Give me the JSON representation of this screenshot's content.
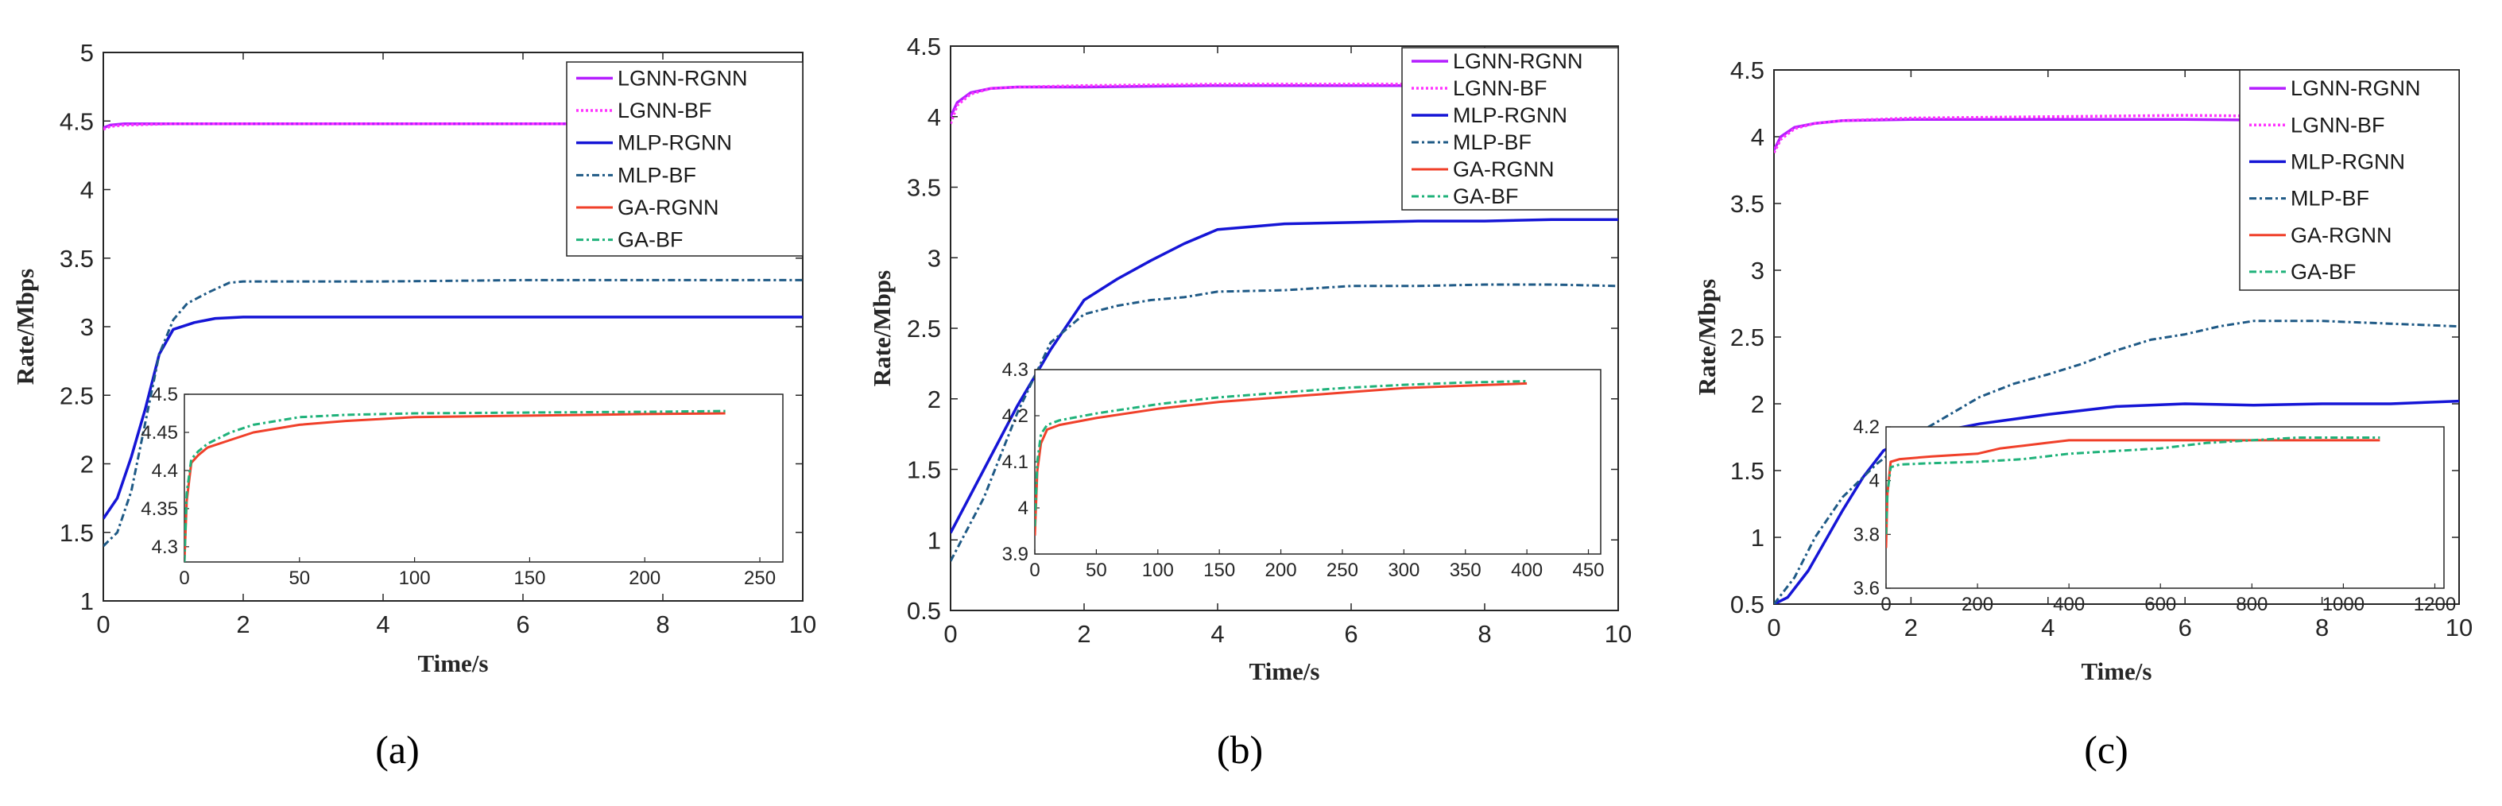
{
  "chart_data": [
    {
      "type": "line",
      "panel_label": "(a)",
      "xlabel": "Time/s",
      "ylabel": "Rate/Mbps",
      "xlim": [
        0,
        10
      ],
      "ylim": [
        1,
        5
      ],
      "xticks": [
        "0",
        "2",
        "4",
        "6",
        "8",
        "10"
      ],
      "yticks": [
        "1",
        "1.5",
        "2",
        "2.5",
        "3",
        "3.5",
        "4",
        "4.5",
        "5"
      ],
      "legend": [
        "LGNN-RGNN",
        "LGNN-BF",
        "MLP-RGNN",
        "MLP-BF",
        "GA-RGNN",
        "GA-BF"
      ],
      "series": [
        {
          "name": "LGNN-RGNN",
          "x": [
            0,
            0.1,
            0.3,
            1,
            2,
            4,
            6,
            8,
            10
          ],
          "y": [
            4.45,
            4.47,
            4.48,
            4.48,
            4.48,
            4.48,
            4.48,
            4.48,
            4.48
          ]
        },
        {
          "name": "LGNN-BF",
          "x": [
            0,
            0.1,
            0.3,
            1,
            2,
            4,
            6,
            8,
            10
          ],
          "y": [
            4.44,
            4.46,
            4.47,
            4.48,
            4.48,
            4.48,
            4.48,
            4.48,
            4.48
          ]
        },
        {
          "name": "MLP-RGNN",
          "x": [
            0,
            0.2,
            0.4,
            0.6,
            0.8,
            1,
            1.3,
            1.6,
            2,
            3,
            4,
            6,
            8,
            10
          ],
          "y": [
            1.6,
            1.75,
            2.05,
            2.4,
            2.8,
            2.98,
            3.03,
            3.06,
            3.07,
            3.07,
            3.07,
            3.07,
            3.07,
            3.07
          ]
        },
        {
          "name": "MLP-BF",
          "x": [
            0,
            0.2,
            0.4,
            0.6,
            0.8,
            1,
            1.2,
            1.5,
            1.8,
            2,
            3,
            4,
            6,
            8,
            10
          ],
          "y": [
            1.4,
            1.5,
            1.8,
            2.3,
            2.8,
            3.05,
            3.17,
            3.25,
            3.32,
            3.33,
            3.33,
            3.33,
            3.34,
            3.34,
            3.34
          ]
        }
      ],
      "inset": {
        "xlim": [
          0,
          260
        ],
        "ylim": [
          4.28,
          4.5
        ],
        "xticks": [
          "0",
          "50",
          "100",
          "150",
          "200",
          "250"
        ],
        "yticks": [
          "4.3",
          "4.35",
          "4.4",
          "4.45",
          "4.5"
        ],
        "series": [
          {
            "name": "GA-RGNN",
            "x": [
              0,
              1,
              3,
              6,
              10,
              20,
              30,
              50,
              70,
              100,
              150,
              200,
              235
            ],
            "y": [
              4.28,
              4.36,
              4.41,
              4.42,
              4.43,
              4.44,
              4.45,
              4.46,
              4.465,
              4.47,
              4.472,
              4.474,
              4.475
            ]
          },
          {
            "name": "GA-BF",
            "x": [
              0,
              1,
              3,
              6,
              10,
              20,
              30,
              50,
              70,
              100,
              150,
              200,
              235
            ],
            "y": [
              4.28,
              4.37,
              4.415,
              4.425,
              4.435,
              4.45,
              4.46,
              4.47,
              4.473,
              4.475,
              4.476,
              4.477,
              4.478
            ]
          }
        ]
      }
    },
    {
      "type": "line",
      "panel_label": "(b)",
      "xlabel": "Time/s",
      "ylabel": "Rate/Mbps",
      "xlim": [
        0,
        10
      ],
      "ylim": [
        0.5,
        4.5
      ],
      "xticks": [
        "0",
        "2",
        "4",
        "6",
        "8",
        "10"
      ],
      "yticks": [
        "0.5",
        "1",
        "1.5",
        "2",
        "2.5",
        "3",
        "3.5",
        "4",
        "4.5"
      ],
      "legend": [
        "LGNN-RGNN",
        "LGNN-BF",
        "MLP-RGNN",
        "MLP-BF",
        "GA-RGNN",
        "GA-BF"
      ],
      "series": [
        {
          "name": "LGNN-RGNN",
          "x": [
            0,
            0.1,
            0.3,
            0.6,
            1,
            2,
            4,
            6,
            8,
            10
          ],
          "y": [
            4.0,
            4.1,
            4.17,
            4.2,
            4.21,
            4.21,
            4.22,
            4.22,
            4.22,
            4.22
          ]
        },
        {
          "name": "LGNN-BF",
          "x": [
            0,
            0.1,
            0.3,
            0.6,
            1,
            2,
            4,
            6,
            8,
            10
          ],
          "y": [
            3.95,
            4.08,
            4.16,
            4.2,
            4.21,
            4.22,
            4.23,
            4.23,
            4.23,
            4.23
          ]
        },
        {
          "name": "MLP-RGNN",
          "x": [
            0,
            0.5,
            1,
            1.5,
            2,
            2.5,
            3,
            3.5,
            4,
            4.5,
            5,
            6,
            7,
            8,
            9,
            10
          ],
          "y": [
            1.05,
            1.5,
            1.95,
            2.35,
            2.7,
            2.85,
            2.98,
            3.1,
            3.2,
            3.22,
            3.24,
            3.25,
            3.26,
            3.26,
            3.27,
            3.27
          ]
        },
        {
          "name": "MLP-BF",
          "x": [
            0,
            0.5,
            1,
            1.5,
            2,
            2.5,
            3,
            3.5,
            4,
            5,
            6,
            7,
            8,
            9,
            10
          ],
          "y": [
            0.85,
            1.3,
            1.9,
            2.4,
            2.6,
            2.66,
            2.7,
            2.72,
            2.76,
            2.77,
            2.8,
            2.8,
            2.81,
            2.81,
            2.8
          ]
        }
      ],
      "inset": {
        "xlim": [
          0,
          460
        ],
        "ylim": [
          3.9,
          4.3
        ],
        "xticks": [
          "0",
          "50",
          "100",
          "150",
          "200",
          "250",
          "300",
          "350",
          "400",
          "450"
        ],
        "yticks": [
          "3.9",
          "4",
          "4.1",
          "4.2",
          "4.3"
        ],
        "series": [
          {
            "name": "GA-RGNN",
            "x": [
              0,
              2,
              5,
              10,
              20,
              50,
              100,
              150,
              200,
              250,
              300,
              350,
              400
            ],
            "y": [
              3.94,
              4.08,
              4.14,
              4.17,
              4.18,
              4.195,
              4.215,
              4.23,
              4.24,
              4.25,
              4.26,
              4.265,
              4.27
            ]
          },
          {
            "name": "GA-BF",
            "x": [
              0,
              2,
              5,
              10,
              20,
              50,
              100,
              150,
              200,
              250,
              300,
              350,
              400
            ],
            "y": [
              3.96,
              4.1,
              4.16,
              4.18,
              4.19,
              4.205,
              4.225,
              4.24,
              4.25,
              4.26,
              4.267,
              4.272,
              4.275
            ]
          }
        ]
      }
    },
    {
      "type": "line",
      "panel_label": "(c)",
      "xlabel": "Time/s",
      "ylabel": "Rate/Mbps",
      "xlim": [
        0,
        10
      ],
      "ylim": [
        0.5,
        4.5
      ],
      "xticks": [
        "0",
        "2",
        "4",
        "6",
        "8",
        "10"
      ],
      "yticks": [
        "0.5",
        "1",
        "1.5",
        "2",
        "2.5",
        "3",
        "3.5",
        "4",
        "4.5"
      ],
      "legend": [
        "LGNN-RGNN",
        "LGNN-BF",
        "MLP-RGNN",
        "MLP-BF",
        "GA-RGNN",
        "GA-BF"
      ],
      "series": [
        {
          "name": "LGNN-RGNN",
          "x": [
            0,
            0.1,
            0.3,
            0.6,
            1,
            2,
            4,
            6,
            8,
            10
          ],
          "y": [
            3.9,
            4.0,
            4.07,
            4.1,
            4.12,
            4.13,
            4.13,
            4.13,
            4.12,
            4.11
          ]
        },
        {
          "name": "LGNN-BF",
          "x": [
            0,
            0.1,
            0.3,
            0.6,
            1,
            2,
            4,
            6,
            8,
            10
          ],
          "y": [
            3.88,
            3.98,
            4.06,
            4.1,
            4.12,
            4.14,
            4.15,
            4.16,
            4.15,
            4.13
          ]
        },
        {
          "name": "MLP-RGNN",
          "x": [
            0,
            0.2,
            0.5,
            1,
            1.3,
            1.6,
            1.8,
            2,
            2.5,
            3,
            4,
            5,
            6,
            7,
            8,
            9,
            10
          ],
          "y": [
            0.5,
            0.55,
            0.75,
            1.2,
            1.45,
            1.65,
            1.7,
            1.75,
            1.8,
            1.85,
            1.92,
            1.98,
            2.0,
            1.99,
            2.0,
            2.0,
            2.02
          ]
        },
        {
          "name": "MLP-BF",
          "x": [
            0,
            0.3,
            0.6,
            1,
            1.5,
            2,
            2.5,
            3,
            3.5,
            4,
            4.5,
            5,
            5.5,
            6,
            6.5,
            7,
            8,
            9,
            10
          ],
          "y": [
            0.5,
            0.7,
            1.0,
            1.3,
            1.55,
            1.75,
            1.9,
            2.05,
            2.15,
            2.22,
            2.3,
            2.4,
            2.48,
            2.52,
            2.58,
            2.62,
            2.62,
            2.6,
            2.58
          ]
        }
      ],
      "inset": {
        "xlim": [
          0,
          1220
        ],
        "ylim": [
          3.6,
          4.2
        ],
        "xticks": [
          "0",
          "200",
          "400",
          "600",
          "800",
          "1000",
          "1200"
        ],
        "yticks": [
          "3.6",
          "3.8",
          "4",
          "4.2"
        ],
        "series": [
          {
            "name": "GA-RGNN",
            "x": [
              0,
              3,
              10,
              30,
              100,
              200,
              250,
              300,
              350,
              400,
              500,
              600,
              800,
              1000,
              1080
            ],
            "y": [
              3.75,
              3.95,
              4.07,
              4.08,
              4.09,
              4.1,
              4.12,
              4.13,
              4.14,
              4.15,
              4.15,
              4.15,
              4.15,
              4.15,
              4.15
            ]
          },
          {
            "name": "GA-BF",
            "x": [
              0,
              3,
              10,
              30,
              100,
              200,
              300,
              400,
              500,
              600,
              700,
              800,
              900,
              1000,
              1080
            ],
            "y": [
              3.8,
              3.95,
              4.05,
              4.06,
              4.065,
              4.07,
              4.08,
              4.1,
              4.11,
              4.12,
              4.14,
              4.15,
              4.16,
              4.16,
              4.16
            ]
          }
        ]
      }
    }
  ],
  "styles": {
    "LGNN-RGNN": {
      "color": "#b41eff",
      "dash": "",
      "width": 3.5
    },
    "LGNN-BF": {
      "color": "#ff33ff",
      "dash": "3 3",
      "width": 3.5
    },
    "MLP-RGNN": {
      "color": "#1515d6",
      "dash": "",
      "width": 3.5
    },
    "MLP-BF": {
      "color": "#1f5a86",
      "dash": "9 4 3 4",
      "width": 3
    },
    "GA-RGNN": {
      "color": "#f0402a",
      "dash": "",
      "width": 3
    },
    "GA-BF": {
      "color": "#1fb27a",
      "dash": "9 4 3 4",
      "width": 3
    }
  }
}
